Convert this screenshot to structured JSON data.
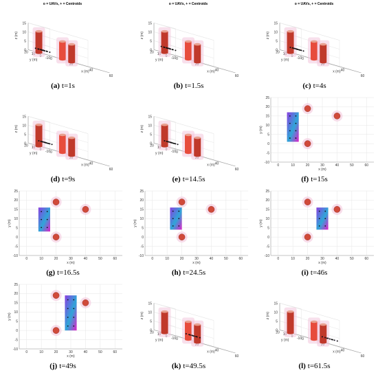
{
  "chart_data": [
    {
      "id": "a",
      "letter": "(a)",
      "label": "t=1s",
      "type": "scatter",
      "view": "3d",
      "title": "o = UAVs, + = Centroids",
      "xlabel": "x (m)",
      "ylabel": "y (m)",
      "zlabel": "z (m)",
      "xticks": [
        0,
        20,
        40,
        60
      ],
      "yticks": [
        20,
        10,
        0,
        -10
      ],
      "zticks": [
        0,
        5,
        10,
        15
      ],
      "formation": {
        "x": [
          3,
          13
        ],
        "y": [
          4,
          18
        ],
        "z": 2,
        "rows": 4,
        "cols": 3,
        "color": "#7a3fd6"
      },
      "obstacles": [
        {
          "x": 10,
          "y": 19,
          "h": 12,
          "color": "#c0392b"
        },
        {
          "x": 20,
          "y": 0,
          "h": 10,
          "color": "#e74c3c"
        },
        {
          "x": 40,
          "y": 15,
          "h": 10,
          "color": "#c0392b"
        }
      ]
    },
    {
      "id": "b",
      "letter": "(b)",
      "label": "t=1.5s",
      "type": "scatter",
      "view": "3d",
      "title": "o = UAVs, + = Centroids",
      "xlabel": "x (m)",
      "ylabel": "y (m)",
      "zlabel": "z (m)",
      "xticks": [
        0,
        20,
        40,
        60
      ],
      "yticks": [
        20,
        10,
        0,
        -10
      ],
      "zticks": [
        0,
        5,
        10,
        15
      ],
      "formation": {
        "x": [
          3,
          13
        ],
        "y": [
          4,
          18
        ],
        "z": 3,
        "rows": 4,
        "cols": 3,
        "color": "#556"
      },
      "obstacles": [
        {
          "x": 10,
          "y": 19,
          "h": 12,
          "color": "#c0392b"
        },
        {
          "x": 20,
          "y": 0,
          "h": 10,
          "color": "#e74c3c"
        },
        {
          "x": 40,
          "y": 15,
          "h": 10,
          "color": "#c0392b"
        }
      ]
    },
    {
      "id": "c",
      "letter": "(c)",
      "label": "t=4s",
      "type": "scatter",
      "view": "3d",
      "title": "o = UAVs, + = Centroids",
      "xlabel": "x (m)",
      "ylabel": "y (m)",
      "zlabel": "z (m)",
      "xticks": [
        0,
        20,
        40,
        60
      ],
      "yticks": [
        20,
        10,
        0,
        -10
      ],
      "zticks": [
        0,
        5,
        10,
        15
      ],
      "formation": {
        "x": [
          5,
          15
        ],
        "y": [
          4,
          16
        ],
        "z": 3,
        "rows": 4,
        "cols": 3,
        "color": "#6a3fd6"
      },
      "obstacles": [
        {
          "x": 10,
          "y": 19,
          "h": 12,
          "color": "#c0392b"
        },
        {
          "x": 20,
          "y": 0,
          "h": 10,
          "color": "#e74c3c"
        },
        {
          "x": 40,
          "y": 15,
          "h": 10,
          "color": "#c0392b"
        }
      ]
    },
    {
      "id": "d",
      "letter": "(d)",
      "label": "t=9s",
      "type": "scatter",
      "view": "3d",
      "title": "",
      "xlabel": "x (m)",
      "ylabel": "y (m)",
      "zlabel": "z (m)",
      "xticks": [
        0,
        20,
        40,
        60
      ],
      "yticks": [
        20,
        10,
        0,
        -10
      ],
      "zticks": [
        0,
        5,
        10,
        15
      ],
      "formation": {
        "x": [
          5,
          15
        ],
        "y": [
          4,
          16
        ],
        "z": 3,
        "rows": 4,
        "cols": 3,
        "color": "#7a3fd6"
      },
      "obstacles": [
        {
          "x": 10,
          "y": 19,
          "h": 12,
          "color": "#c0392b"
        },
        {
          "x": 20,
          "y": 0,
          "h": 10,
          "color": "#e74c3c"
        },
        {
          "x": 40,
          "y": 15,
          "h": 10,
          "color": "#c0392b"
        }
      ]
    },
    {
      "id": "e",
      "letter": "(e)",
      "label": "t=14.5s",
      "type": "scatter",
      "view": "3d",
      "title": "",
      "xlabel": "x (m)",
      "ylabel": "y (m)",
      "zlabel": "z (m)",
      "xticks": [
        0,
        20,
        40,
        60
      ],
      "yticks": [
        20,
        10,
        0,
        -10
      ],
      "zticks": [
        0,
        5,
        10,
        15
      ],
      "formation": {
        "x": [
          5,
          15
        ],
        "y": [
          4,
          16
        ],
        "z": 3,
        "rows": 4,
        "cols": 3,
        "color": "#7a3fd6"
      },
      "obstacles": [
        {
          "x": 10,
          "y": 19,
          "h": 12,
          "color": "#c0392b"
        },
        {
          "x": 20,
          "y": 0,
          "h": 10,
          "color": "#e74c3c"
        },
        {
          "x": 40,
          "y": 15,
          "h": 10,
          "color": "#c0392b"
        }
      ]
    },
    {
      "id": "f",
      "letter": "(f)",
      "label": "t=15s",
      "type": "scatter",
      "view": "2d",
      "title": "",
      "xlabel": "x (m)",
      "ylabel": "y (m)",
      "xlim": [
        -5,
        65
      ],
      "ylim": [
        -10,
        25
      ],
      "xticks": [
        0,
        10,
        20,
        30,
        40,
        50,
        60
      ],
      "yticks": [
        -10,
        -5,
        0,
        5,
        10,
        15,
        20,
        25
      ],
      "formation": {
        "x": [
          6,
          14
        ],
        "y": [
          1,
          17
        ],
        "rows": 4,
        "cols": 2
      },
      "obstacles": [
        {
          "x": 20,
          "y": 19
        },
        {
          "x": 20,
          "y": 0
        },
        {
          "x": 40,
          "y": 15
        }
      ]
    },
    {
      "id": "g",
      "letter": "(g)",
      "label": "t=16.5s",
      "type": "scatter",
      "view": "2d",
      "title": "",
      "xlabel": "x (m)",
      "ylabel": "y (m)",
      "xlim": [
        -5,
        65
      ],
      "ylim": [
        -10,
        25
      ],
      "xticks": [
        0,
        10,
        20,
        30,
        40,
        50,
        60
      ],
      "yticks": [
        -10,
        -5,
        0,
        5,
        10,
        15,
        20,
        25
      ],
      "formation": {
        "x": [
          8,
          16
        ],
        "y": [
          3,
          16
        ],
        "rows": 3,
        "cols": 2
      },
      "obstacles": [
        {
          "x": 20,
          "y": 19
        },
        {
          "x": 20,
          "y": 0
        },
        {
          "x": 40,
          "y": 15
        }
      ]
    },
    {
      "id": "h",
      "letter": "(h)",
      "label": "t=24.5s",
      "type": "scatter",
      "view": "2d",
      "title": "",
      "xlabel": "x (m)",
      "ylabel": "y (m)",
      "xlim": [
        -5,
        65
      ],
      "ylim": [
        -10,
        25
      ],
      "xticks": [
        0,
        10,
        20,
        30,
        40,
        50,
        60
      ],
      "yticks": [
        -10,
        -5,
        0,
        5,
        10,
        15,
        20,
        25
      ],
      "formation": {
        "x": [
          12,
          20
        ],
        "y": [
          4,
          16
        ],
        "rows": 3,
        "cols": 2
      },
      "obstacles": [
        {
          "x": 20,
          "y": 19
        },
        {
          "x": 20,
          "y": 0
        },
        {
          "x": 40,
          "y": 15
        }
      ]
    },
    {
      "id": "i",
      "letter": "(i)",
      "label": "t=46s",
      "type": "scatter",
      "view": "2d",
      "title": "",
      "xlabel": "x (m)",
      "ylabel": "y (m)",
      "xlim": [
        -5,
        65
      ],
      "ylim": [
        -10,
        25
      ],
      "xticks": [
        0,
        10,
        20,
        30,
        40,
        50,
        60
      ],
      "yticks": [
        -10,
        -5,
        0,
        5,
        10,
        15,
        20,
        25
      ],
      "formation": {
        "x": [
          26,
          34
        ],
        "y": [
          4,
          16
        ],
        "rows": 3,
        "cols": 2
      },
      "obstacles": [
        {
          "x": 20,
          "y": 19
        },
        {
          "x": 20,
          "y": 0
        },
        {
          "x": 40,
          "y": 15
        }
      ]
    },
    {
      "id": "j",
      "letter": "(j)",
      "label": "t=49s",
      "type": "scatter",
      "view": "2d",
      "title": "",
      "xlabel": "x (m)",
      "ylabel": "y (m)",
      "xlim": [
        -5,
        65
      ],
      "ylim": [
        -10,
        25
      ],
      "xticks": [
        0,
        10,
        20,
        30,
        40,
        50,
        60
      ],
      "yticks": [
        -10,
        -5,
        0,
        5,
        10,
        15,
        20,
        25
      ],
      "formation": {
        "x": [
          26,
          34
        ],
        "y": [
          0,
          19
        ],
        "rows": 4,
        "cols": 2
      },
      "obstacles": [
        {
          "x": 20,
          "y": 19
        },
        {
          "x": 20,
          "y": 0
        },
        {
          "x": 40,
          "y": 15
        }
      ]
    },
    {
      "id": "k",
      "letter": "(k)",
      "label": "t=49.5s",
      "type": "scatter",
      "view": "3d",
      "title": "",
      "xlabel": "x (m)",
      "ylabel": "y (m)",
      "zlabel": "z (m)",
      "xticks": [
        0,
        20,
        40,
        60
      ],
      "yticks": [
        20,
        10,
        0,
        -10
      ],
      "zticks": [
        0,
        5,
        10,
        15
      ],
      "formation": {
        "x": [
          26,
          38
        ],
        "y": [
          4,
          16
        ],
        "z": 3,
        "rows": 3,
        "cols": 3,
        "color": "#7a3fd6"
      },
      "obstacles": [
        {
          "x": 10,
          "y": 19,
          "h": 12,
          "color": "#c0392b"
        },
        {
          "x": 20,
          "y": 0,
          "h": 10,
          "color": "#e74c3c"
        },
        {
          "x": 40,
          "y": 15,
          "h": 10,
          "color": "#c0392b"
        }
      ]
    },
    {
      "id": "l",
      "letter": "(l)",
      "label": "t=61.5s",
      "type": "scatter",
      "view": "3d",
      "title": "",
      "xlabel": "x (m)",
      "ylabel": "y (m)",
      "zlabel": "z (m)",
      "xticks": [
        0,
        20,
        40,
        60
      ],
      "yticks": [
        20,
        10,
        0,
        -10
      ],
      "zticks": [
        0,
        5,
        10,
        15
      ],
      "formation": {
        "x": [
          36,
          50
        ],
        "y": [
          4,
          16
        ],
        "z": 3,
        "rows": 3,
        "cols": 3,
        "color": "#7a3fd6"
      },
      "obstacles": [
        {
          "x": 10,
          "y": 19,
          "h": 12,
          "color": "#c0392b"
        },
        {
          "x": 20,
          "y": 0,
          "h": 10,
          "color": "#e74c3c"
        },
        {
          "x": 40,
          "y": 15,
          "h": 10,
          "color": "#c0392b"
        }
      ]
    }
  ]
}
